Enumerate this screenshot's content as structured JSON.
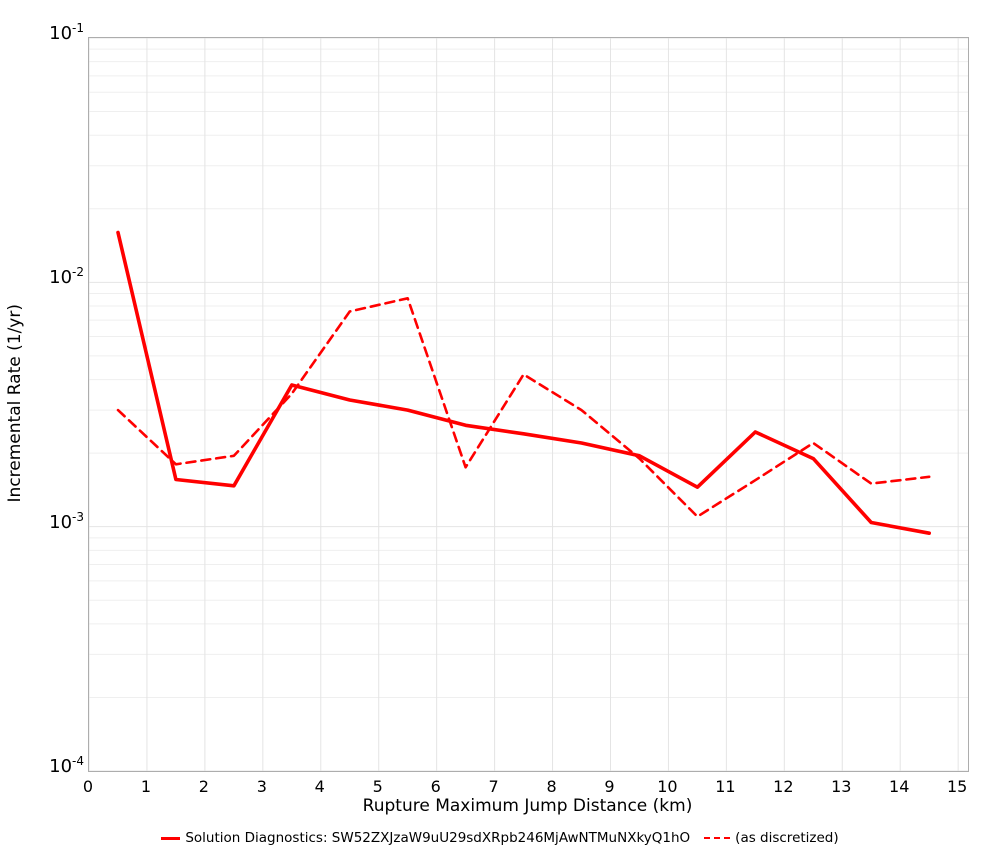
{
  "figure": {
    "background": "#ffffff",
    "plot_border_color": "#adadad",
    "grid_major_color": "#e4e4e4",
    "grid_minor_color": "#efefef",
    "line_color": "#ff0000"
  },
  "chart_data": {
    "type": "line",
    "title": "",
    "xlabel": "Rupture Maximum Jump Distance (km)",
    "ylabel": "Incremental Rate (1/yr)",
    "yscale": "log",
    "xlim": [
      0,
      15.17
    ],
    "ylim_log10": [
      -4,
      -1
    ],
    "grid": true,
    "legend_position": "bottom-center",
    "x_ticks": [
      0,
      1,
      2,
      3,
      4,
      5,
      6,
      7,
      8,
      9,
      10,
      11,
      12,
      13,
      14,
      15
    ],
    "y_ticks": [
      {
        "base": "10",
        "exp": "-1"
      },
      {
        "base": "10",
        "exp": "-2"
      },
      {
        "base": "10",
        "exp": "-3"
      },
      {
        "base": "10",
        "exp": "-4"
      }
    ],
    "x": [
      0.5,
      1.5,
      2.5,
      3.5,
      4.5,
      5.5,
      6.5,
      7.5,
      8.5,
      9.5,
      10.5,
      11.5,
      12.5,
      13.5,
      14.5
    ],
    "series": [
      {
        "name": "Solution Diagnostics: SW52ZXJzaW9uU29sdXRpb246MjAwNTMuNXkyQ1hO",
        "style": "solid",
        "color": "#ff0000",
        "values": [
          0.016,
          0.00156,
          0.00147,
          0.0038,
          0.0033,
          0.003,
          0.0026,
          0.0024,
          0.0022,
          0.00195,
          0.00145,
          0.00244,
          0.0019,
          0.00104,
          0.00094
        ]
      },
      {
        "name": "(as discretized)",
        "style": "dashed",
        "color": "#ff0000",
        "values": [
          0.003,
          0.0018,
          0.00195,
          0.0035,
          0.0076,
          0.0086,
          0.00175,
          0.0042,
          0.003,
          0.0019,
          0.0011,
          0.00155,
          0.0022,
          0.0015,
          0.0016
        ]
      }
    ]
  }
}
